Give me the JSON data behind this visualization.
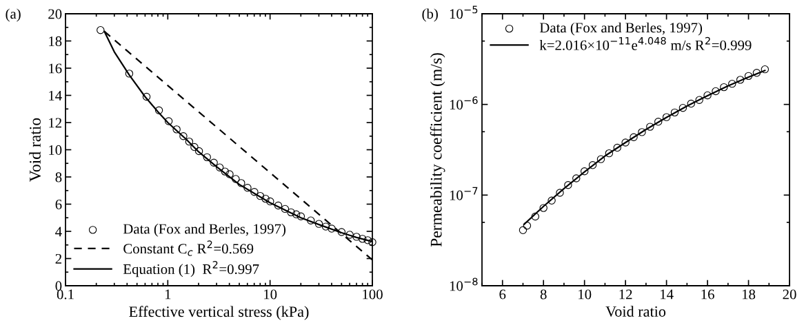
{
  "chart_data": [
    {
      "type": "scatter",
      "xlabel": "Effective vertical stress (kPa)",
      "ylabel": "Void ratio",
      "log": "x",
      "xlim": [
        0.1,
        100
      ],
      "xticks": [
        {
          "value": 0.1,
          "label": "0.1"
        },
        {
          "value": 1,
          "label": "1"
        },
        {
          "value": 10,
          "label": "10"
        },
        {
          "value": 100,
          "label": "100"
        }
      ],
      "ylim": [
        0,
        20
      ],
      "yticks": [
        0,
        2,
        4,
        6,
        8,
        10,
        12,
        14,
        16,
        18,
        20
      ],
      "grid": false,
      "legend": "bottom left",
      "annotations": [
        "(a)"
      ],
      "series": [
        {
          "name": "Data (Fox and Berles, 1997)",
          "marker": "circle",
          "color": "#000000",
          "x": [
            0.22,
            0.42,
            0.62,
            0.82,
            1.02,
            1.22,
            1.42,
            1.62,
            1.82,
            2.02,
            2.42,
            2.82,
            3.22,
            3.62,
            4.02,
            4.62,
            5.22,
            6.02,
            7.02,
            8.02,
            9.02,
            10.02,
            12.02,
            14.02,
            16.02,
            18.02,
            20.02,
            25.02,
            30.02,
            35.02,
            40.02,
            50.02,
            60.02,
            70.02,
            80.02,
            90.02,
            100
          ],
          "values": [
            18.8,
            15.6,
            13.9,
            12.9,
            12.1,
            11.5,
            11.0,
            10.6,
            10.2,
            9.9,
            9.45,
            9.05,
            8.7,
            8.4,
            8.2,
            7.85,
            7.55,
            7.2,
            6.9,
            6.6,
            6.4,
            6.2,
            5.9,
            5.65,
            5.4,
            5.25,
            5.1,
            4.8,
            4.55,
            4.35,
            4.2,
            3.95,
            3.75,
            3.6,
            3.45,
            3.35,
            3.2
          ]
        },
        {
          "name": "Constant C$_{c}$ R$^{2}$=0.569",
          "type": "line",
          "line_style": "dashed",
          "color": "#000000",
          "x": [
            0.24,
            100
          ],
          "values": [
            18.7,
            1.9
          ]
        },
        {
          "name": "Equation (1)  R$^{2}$=0.997",
          "type": "line",
          "line_style": "solid",
          "color": "#000000",
          "x": [
            0.24,
            0.3,
            0.42,
            0.6,
            0.8,
            1.0,
            1.5,
            2,
            3,
            5,
            10,
            20,
            30,
            50,
            70,
            100
          ],
          "values": [
            18.7,
            17.2,
            15.5,
            13.9,
            12.8,
            12.0,
            10.8,
            9.85,
            8.75,
            7.45,
            6.1,
            5.0,
            4.5,
            3.9,
            3.55,
            3.25
          ]
        }
      ]
    },
    {
      "type": "scatter",
      "xlabel": "Void ratio",
      "ylabel": "Permeability coefficient (m/s)",
      "log": "y",
      "xlim": [
        5,
        20
      ],
      "xticks": [
        6,
        8,
        10,
        12,
        14,
        16,
        18,
        20
      ],
      "ylim": [
        1e-08,
        1e-05
      ],
      "yticks": [
        {
          "value": 1e-08,
          "label": "10$^{−8}$"
        },
        {
          "value": 1e-07,
          "label": "10$^{−7}$"
        },
        {
          "value": 1e-06,
          "label": "10$^{−6}$"
        },
        {
          "value": 1e-05,
          "label": "10$^{−5}$"
        }
      ],
      "grid": false,
      "legend": "top left",
      "annotations": [
        "(b)"
      ],
      "series": [
        {
          "name": "Data (Fox and Berles, 1997)",
          "marker": "circle",
          "color": "#000000",
          "x": [
            7.0,
            7.2,
            7.6,
            8.0,
            8.4,
            8.8,
            9.2,
            9.6,
            10.0,
            10.4,
            10.8,
            11.2,
            11.6,
            12.0,
            12.4,
            12.8,
            13.2,
            13.6,
            14.0,
            14.4,
            14.8,
            15.2,
            15.6,
            16.0,
            16.4,
            16.8,
            17.2,
            17.6,
            18.0,
            18.4,
            18.8
          ],
          "values": [
            4.1e-08,
            4.6e-08,
            5.8e-08,
            7.2e-08,
            8.7e-08,
            1.06e-07,
            1.29e-07,
            1.53e-07,
            1.83e-07,
            2.14e-07,
            2.49e-07,
            2.89e-07,
            3.33e-07,
            3.8e-07,
            4.35e-07,
            4.95e-07,
            5.67e-07,
            6.44e-07,
            7.24e-07,
            8.15e-07,
            9.16e-07,
            1.02e-06,
            1.12e-06,
            1.26e-06,
            1.4e-06,
            1.55e-06,
            1.69e-06,
            1.87e-06,
            2.06e-06,
            2.23e-06,
            2.44e-06
          ]
        },
        {
          "name": "k=2.016×10$^{−11}$e$^{4.048}$ m/s R$^{2}$=0.999",
          "type": "line",
          "line_style": "solid",
          "color": "#000000",
          "x": [
            7.05,
            8,
            9,
            10,
            11,
            12,
            13,
            14,
            15,
            16,
            17,
            18,
            18.8
          ],
          "values": [
            4.75e-08,
            7.5e-08,
            1.18e-07,
            1.8e-07,
            2.7e-07,
            3.8e-07,
            5.3e-07,
            7.2e-07,
            9.6e-07,
            1.25e-06,
            1.6e-06,
            2e-06,
            2.37e-06
          ]
        }
      ]
    }
  ]
}
